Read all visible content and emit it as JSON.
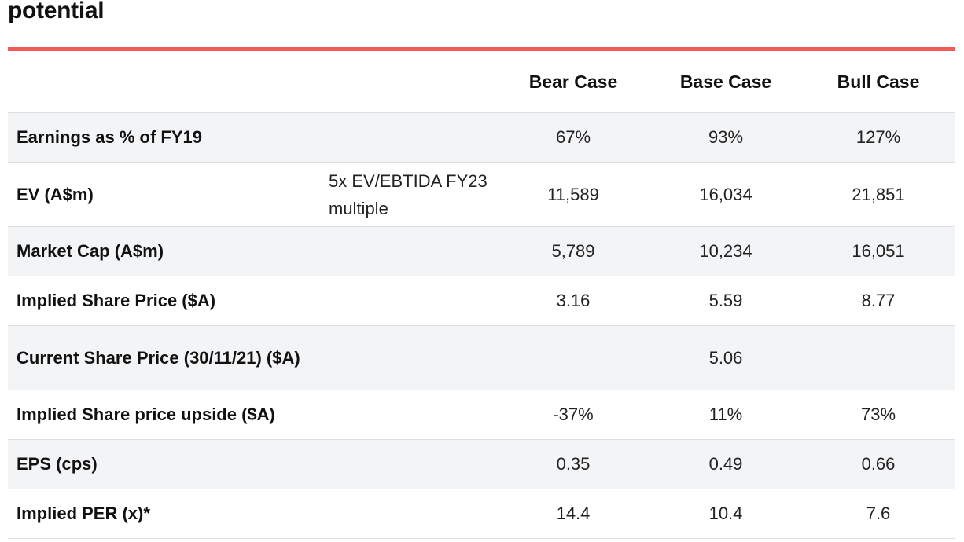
{
  "heading": "potential",
  "colors": {
    "accent_rule": "#f25a57",
    "row_shade": "#f3f4f6",
    "row_border": "#dcdfe3"
  },
  "table": {
    "headers": [
      "",
      "",
      "Bear Case",
      "Base Case",
      "Bull Case"
    ],
    "rows": [
      {
        "label": "Earnings as % of FY19",
        "note": "",
        "bear": "67%",
        "base": "93%",
        "bull": "127%"
      },
      {
        "label": "EV (A$m)",
        "note": "5x EV/EBTIDA FY23 multiple",
        "bear": "11,589",
        "base": "16,034",
        "bull": "21,851"
      },
      {
        "label": "Market Cap (A$m)",
        "note": "",
        "bear": "5,789",
        "base": "10,234",
        "bull": "16,051"
      },
      {
        "label": "Implied Share Price ($A)",
        "note": "",
        "bear": "3.16",
        "base": "5.59",
        "bull": "8.77"
      },
      {
        "label": "Current Share Price (30/11/21) ($A)",
        "note": "",
        "bear": "",
        "base": "5.06",
        "bull": ""
      },
      {
        "label": "Implied Share price upside ($A)",
        "note": "",
        "bear": "-37%",
        "base": "11%",
        "bull": "73%"
      },
      {
        "label": "EPS (cps)",
        "note": "",
        "bear": "0.35",
        "base": "0.49",
        "bull": "0.66"
      },
      {
        "label": "Implied PER (x)*",
        "note": "",
        "bear": "14.4",
        "base": "10.4",
        "bull": "7.6"
      }
    ]
  }
}
